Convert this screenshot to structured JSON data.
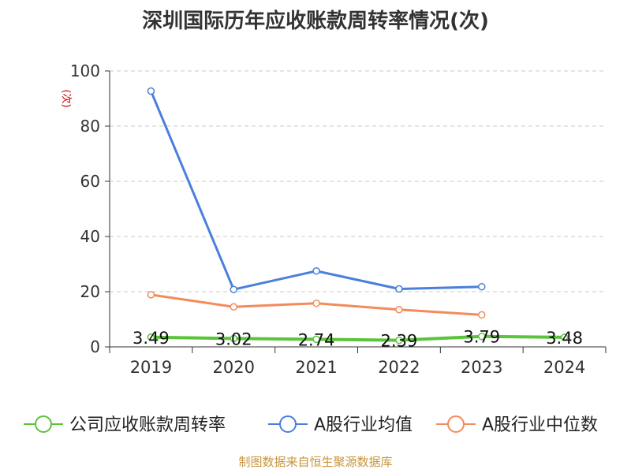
{
  "title": "深圳国际历年应收账款周转率情况(次)",
  "footer": "制图数据来自恒生聚源数据库",
  "chart_data": {
    "type": "line",
    "title": "深圳国际历年应收账款周转率情况(次)",
    "ylabel": "(次)",
    "ylim": [
      0,
      100
    ],
    "yticks": [
      0,
      20,
      40,
      60,
      80,
      100
    ],
    "categories": [
      "2019",
      "2020",
      "2021",
      "2022",
      "2023",
      "2024"
    ],
    "grid": true,
    "legend_position": "bottom",
    "series": [
      {
        "name": "公司应收账款周转率",
        "color": "#5ac43a",
        "values": [
          3.49,
          3.02,
          2.74,
          2.39,
          3.79,
          3.48
        ],
        "labels": [
          "3.49",
          "3.02",
          "2.74",
          "2.39",
          "3.79",
          "3.48"
        ]
      },
      {
        "name": "A股行业均值",
        "color": "#4a7fdb",
        "values": [
          92.7,
          20.8,
          27.5,
          21.0,
          21.8,
          null
        ]
      },
      {
        "name": "A股行业中位数",
        "color": "#f38b5a",
        "values": [
          18.9,
          14.5,
          15.8,
          13.5,
          11.6,
          null
        ]
      }
    ]
  }
}
